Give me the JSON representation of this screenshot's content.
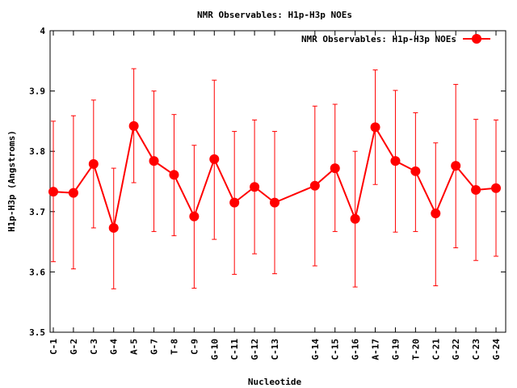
{
  "chart_data": {
    "type": "line",
    "title": "NMR Observables: H1p-H3p NOEs",
    "xlabel": "Nucleotide",
    "ylabel": "H1p-H3p (Angstroms)",
    "ylim": [
      3.5,
      4.0
    ],
    "yticks": [
      "3.5",
      "3.6",
      "3.7",
      "3.8",
      "3.9",
      "4"
    ],
    "grid": false,
    "legend": {
      "position": "top-right",
      "label": "NMR Observables: H1p-H3p NOEs"
    },
    "color": "#ff0000",
    "categories": [
      "C-1",
      "G-2",
      "C-3",
      "G-4",
      "A-5",
      "G-7",
      "T-8",
      "C-9",
      "G-10",
      "C-11",
      "G-12",
      "C-13",
      "G-14",
      "C-15",
      "G-16",
      "A-17",
      "G-19",
      "T-20",
      "C-21",
      "G-22",
      "C-23",
      "G-24"
    ],
    "x": [
      1,
      2,
      3,
      4,
      5,
      6,
      7,
      8,
      9,
      10,
      11,
      12,
      14,
      15,
      16,
      17,
      18,
      19,
      20,
      21,
      22,
      23
    ],
    "values": [
      3.733,
      3.731,
      3.779,
      3.673,
      3.842,
      3.784,
      3.761,
      3.692,
      3.787,
      3.715,
      3.741,
      3.715,
      3.743,
      3.772,
      3.688,
      3.84,
      3.784,
      3.767,
      3.697,
      3.776,
      3.736,
      3.739
    ],
    "err_low": [
      3.617,
      3.605,
      3.673,
      3.572,
      3.748,
      3.667,
      3.66,
      3.573,
      3.654,
      3.596,
      3.63,
      3.597,
      3.61,
      3.667,
      3.575,
      3.745,
      3.666,
      3.667,
      3.577,
      3.64,
      3.619,
      3.626
    ],
    "err_high": [
      3.85,
      3.859,
      3.885,
      3.772,
      3.937,
      3.9,
      3.861,
      3.81,
      3.918,
      3.833,
      3.852,
      3.833,
      3.875,
      3.878,
      3.8,
      3.935,
      3.901,
      3.864,
      3.814,
      3.911,
      3.853,
      3.852
    ]
  }
}
